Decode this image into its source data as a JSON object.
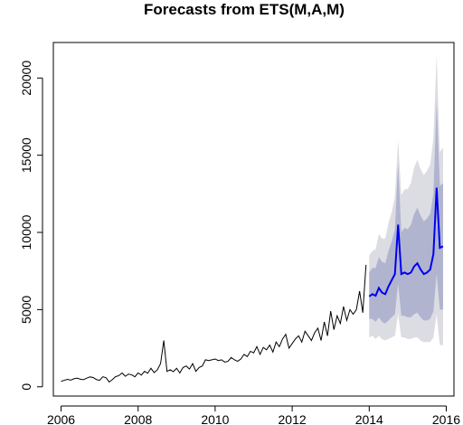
{
  "chart_data": {
    "type": "line",
    "title": "Forecasts from ETS(M,A,M)",
    "xlabel": "",
    "ylabel": "",
    "xlim": [
      2005.8,
      2016.2
    ],
    "ylim": [
      -600,
      22300
    ],
    "x_ticks": [
      2006,
      2008,
      2010,
      2012,
      2014,
      2016
    ],
    "x_tick_labels": [
      "2006",
      "2008",
      "2010",
      "2012",
      "2014",
      "2016"
    ],
    "y_ticks": [
      0,
      5000,
      10000,
      15000,
      20000
    ],
    "y_tick_labels": [
      "0",
      "5000",
      "10000",
      "15000",
      "20000"
    ],
    "colors": {
      "history": "#000000",
      "forecast": "#0000ee",
      "band_95": "#dcdce3",
      "band_80": "#b0b4cf"
    },
    "history": {
      "name": "",
      "x": [
        2006.0,
        2006.083,
        2006.167,
        2006.25,
        2006.333,
        2006.417,
        2006.5,
        2006.583,
        2006.667,
        2006.75,
        2006.833,
        2006.917,
        2007.0,
        2007.083,
        2007.167,
        2007.25,
        2007.333,
        2007.417,
        2007.5,
        2007.583,
        2007.667,
        2007.75,
        2007.833,
        2007.917,
        2008.0,
        2008.083,
        2008.167,
        2008.25,
        2008.333,
        2008.417,
        2008.5,
        2008.583,
        2008.667,
        2008.75,
        2008.833,
        2008.917,
        2009.0,
        2009.083,
        2009.167,
        2009.25,
        2009.333,
        2009.417,
        2009.5,
        2009.583,
        2009.667,
        2009.75,
        2009.833,
        2009.917,
        2010.0,
        2010.083,
        2010.167,
        2010.25,
        2010.333,
        2010.417,
        2010.5,
        2010.583,
        2010.667,
        2010.75,
        2010.833,
        2010.917,
        2011.0,
        2011.083,
        2011.167,
        2011.25,
        2011.333,
        2011.417,
        2011.5,
        2011.583,
        2011.667,
        2011.75,
        2011.833,
        2011.917,
        2012.0,
        2012.083,
        2012.167,
        2012.25,
        2012.333,
        2012.417,
        2012.5,
        2012.583,
        2012.667,
        2012.75,
        2012.833,
        2012.917,
        2013.0,
        2013.083,
        2013.167,
        2013.25,
        2013.333,
        2013.417,
        2013.5,
        2013.583,
        2013.667,
        2013.75,
        2013.833,
        2013.917
      ],
      "values": [
        350,
        420,
        480,
        430,
        520,
        560,
        490,
        460,
        560,
        640,
        600,
        470,
        420,
        650,
        590,
        310,
        470,
        660,
        720,
        900,
        680,
        820,
        780,
        650,
        900,
        760,
        1000,
        880,
        1200,
        920,
        1100,
        1500,
        3000,
        1000,
        1100,
        980,
        1200,
        900,
        1250,
        1350,
        1150,
        1500,
        1000,
        1250,
        1350,
        1750,
        1700,
        1750,
        1800,
        1700,
        1750,
        1600,
        1650,
        1900,
        1750,
        1650,
        1800,
        2100,
        1950,
        2300,
        2200,
        2600,
        2100,
        2550,
        2400,
        2700,
        2250,
        2900,
        2600,
        3100,
        3400,
        2500,
        2800,
        3100,
        3300,
        2900,
        3600,
        3300,
        3000,
        3500,
        3800,
        3000,
        4200,
        3300,
        4900,
        3700,
        4600,
        4100,
        5200,
        4300,
        5000,
        4700,
        5000,
        6200,
        4800,
        7900
      ]
    },
    "forecast": {
      "name": "",
      "x": [
        2014.0,
        2014.083,
        2014.167,
        2014.25,
        2014.333,
        2014.417,
        2014.5,
        2014.583,
        2014.667,
        2014.75,
        2014.833,
        2014.917,
        2015.0,
        2015.083,
        2015.167,
        2015.25,
        2015.333,
        2015.417,
        2015.5,
        2015.583,
        2015.667,
        2015.75,
        2015.833,
        2015.917
      ],
      "values": [
        5850,
        6000,
        5900,
        6400,
        6100,
        6000,
        6500,
        6900,
        7300,
        10500,
        7300,
        7400,
        7300,
        7400,
        7800,
        8000,
        7600,
        7300,
        7400,
        7600,
        8600,
        12900,
        9000,
        9100
      ],
      "lower_80": [
        4400,
        4400,
        4200,
        4500,
        4200,
        4100,
        4300,
        4500,
        4700,
        6700,
        4600,
        4600,
        4500,
        4500,
        4700,
        4800,
        4500,
        4300,
        4300,
        4400,
        4900,
        7300,
        5000,
        5000
      ],
      "upper_80": [
        7400,
        7700,
        7700,
        8400,
        8100,
        8000,
        8800,
        9400,
        10200,
        14500,
        10000,
        10300,
        10200,
        10500,
        11200,
        11600,
        11100,
        10700,
        10900,
        11200,
        12500,
        18500,
        13000,
        13200
      ],
      "lower_95": [
        3200,
        3300,
        3100,
        3300,
        3100,
        3000,
        3100,
        3200,
        3300,
        4700,
        3200,
        3200,
        3100,
        3100,
        3200,
        3200,
        3000,
        2900,
        2900,
        2900,
        3200,
        4700,
        2700,
        2700
      ],
      "upper_95": [
        8500,
        8800,
        8900,
        9900,
        9600,
        9600,
        10600,
        11300,
        12300,
        16000,
        12400,
        12800,
        12800,
        13200,
        14200,
        14700,
        14100,
        13700,
        14000,
        14400,
        16100,
        21500,
        15200,
        15500
      ]
    }
  }
}
